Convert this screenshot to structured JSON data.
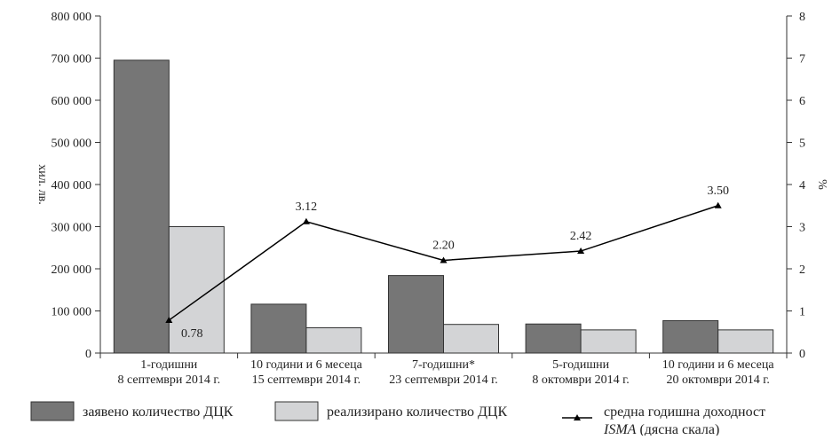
{
  "chart_data": {
    "type": "bar",
    "categories": [
      [
        "1-годишни",
        "8 септември 2014 г."
      ],
      [
        "10 години и 6 месеца",
        "15 септември 2014 г."
      ],
      [
        "7-годишни*",
        "23 септември 2014 г."
      ],
      [
        "5-годишни",
        "8 октомври 2014 г."
      ],
      [
        "10 години и 6 месеца",
        "20 октомври 2014 г."
      ]
    ],
    "series": [
      {
        "name": "заявено количество ДЦК",
        "type": "bar",
        "axis": "left",
        "color": "#767676",
        "values": [
          695000,
          116000,
          184000,
          69000,
          77000
        ]
      },
      {
        "name": "реализирано количество ДЦК",
        "type": "bar",
        "axis": "left",
        "color": "#d3d4d6",
        "values": [
          300000,
          60000,
          68000,
          55000,
          55000
        ]
      },
      {
        "name": "средна годишна доходност",
        "name_line2": "(дясна скала)",
        "name_italic": "ISMA",
        "type": "line",
        "axis": "right",
        "color": "#000000",
        "values": [
          0.78,
          3.12,
          2.2,
          2.42,
          3.5
        ],
        "labels": [
          "0.78",
          "3.12",
          "2.20",
          "2.42",
          "3.50"
        ]
      }
    ],
    "ylabel_left": "хил. лв.",
    "ylabel_right": "%",
    "ylim_left": [
      0,
      800000
    ],
    "ylim_right": [
      0,
      8
    ],
    "yticks_left": [
      "0",
      "100 000",
      "200 000",
      "300 000",
      "400 000",
      "500 000",
      "600 000",
      "700 000",
      "800 000"
    ],
    "yticks_right": [
      "0",
      "1",
      "2",
      "3",
      "4",
      "5",
      "6",
      "7",
      "8"
    ],
    "grid": false,
    "legend_position": "bottom"
  }
}
